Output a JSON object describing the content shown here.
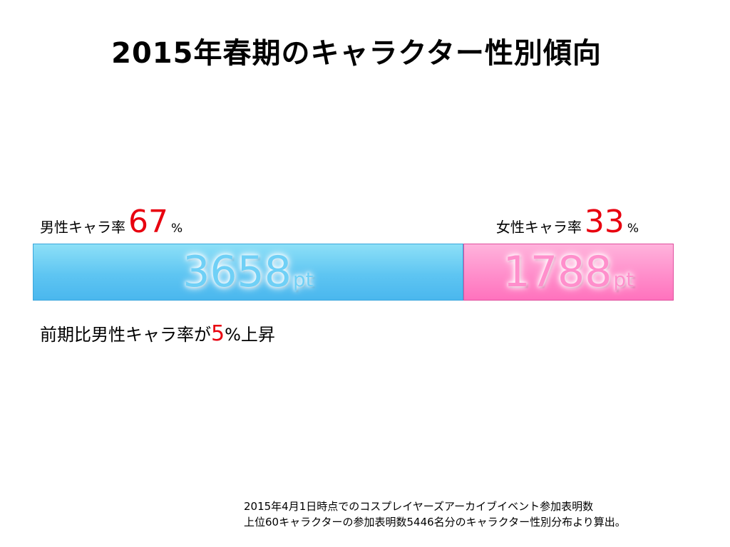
{
  "title": "2015年春期のキャラクター性別傾向",
  "male": {
    "label": "男性キャラ率",
    "percent": "67",
    "percent_unit": "%",
    "points": "3658",
    "points_unit": "pt"
  },
  "female": {
    "label": "女性キャラ率",
    "percent": "33",
    "percent_unit": "%",
    "points": "1788",
    "points_unit": "pt"
  },
  "note": {
    "prefix": "前期比男性キャラ率が",
    "value": "5",
    "suffix": "%上昇"
  },
  "footnote": {
    "line1": "2015年4月1日時点でのコスプレイヤーズアーカイブイベント参加表明数",
    "line2": "上位60キャラクターの参加表明数5446名分のキャラクター性別分布より算出。"
  },
  "colors": {
    "male": "#5ec5f2",
    "female": "#ff8ecb",
    "accent": "#e8000f"
  },
  "chart_data": {
    "type": "bar",
    "orientation": "horizontal-stacked",
    "title": "2015年春期のキャラクター性別傾向",
    "categories": [
      "男性キャラ",
      "女性キャラ"
    ],
    "values": [
      3658,
      1788
    ],
    "percents": [
      67,
      33
    ],
    "unit": "pt"
  }
}
